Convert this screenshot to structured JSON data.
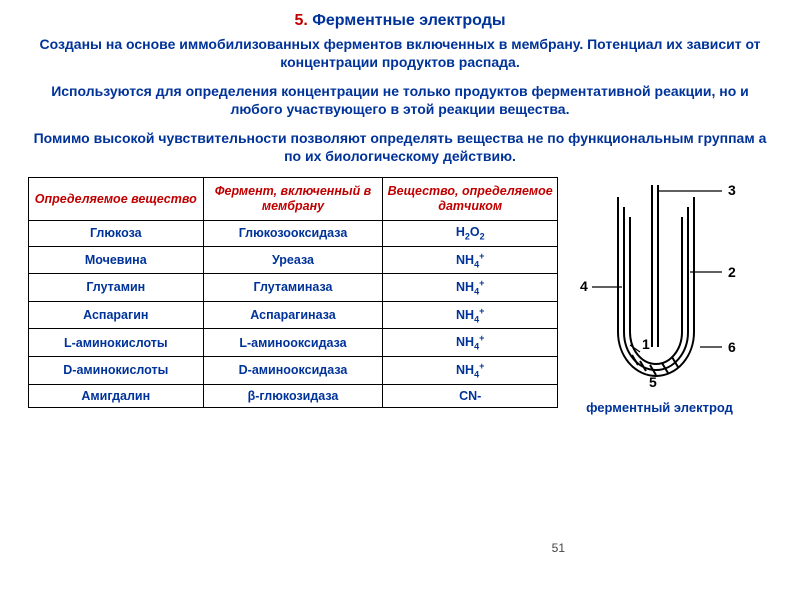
{
  "title_num": "5.",
  "title_text": "Ферментные электроды",
  "para1": "Созданы на основе иммобилизованных ферментов включенных в мембрану. Потенциал их зависит от концентрации продуктов распада.",
  "para2": "Используются для определения концентрации не только продуктов ферментативной реакции, но и любого участвующего в этой реакции вещества.",
  "para3": "Помимо высокой чувствительности позволяют определять вещества не по функциональным группам а по их биологическому действию.",
  "table": {
    "headers": [
      "Определяемое вещество",
      "Фермент, включенный в мембрану",
      "Вещество, определяемое датчиком"
    ],
    "col_widths": [
      "33%",
      "34%",
      "33%"
    ],
    "rows": [
      [
        "Глюкоза",
        "Глюкозооксидаза",
        "H<span class='sub'>2</span>O<span class='sub'>2</span>"
      ],
      [
        "Мочевина",
        "Уреаза",
        "NH<span class='sub'>4</span><span class='sup'>+</span>"
      ],
      [
        "Глутамин",
        "Глутаминаза",
        "NH<span class='sub'>4</span><span class='sup'>+</span>"
      ],
      [
        "Аспарагин",
        "Аспарагиназа",
        "NH<span class='sub'>4</span><span class='sup'>+</span>"
      ],
      [
        "L-аминокислоты",
        "L-аминооксидаза",
        "NH<span class='sub'>4</span><span class='sup'>+</span>"
      ],
      [
        "D-аминокислоты",
        "D-аминооксидаза",
        "NH<span class='sub'>4</span><span class='sup'>+</span>"
      ],
      [
        "Амигдалин",
        "β-глюкозидаза",
        "CN-"
      ]
    ]
  },
  "diagram": {
    "labels": [
      "1",
      "2",
      "3",
      "4",
      "5",
      "6"
    ],
    "stroke": "#000000",
    "stroke_width": 2,
    "caption": "ферментный электрод"
  },
  "page_number": "51",
  "colors": {
    "accent_red": "#c00000",
    "accent_blue": "#003399",
    "border": "#000000",
    "bg": "#ffffff"
  }
}
